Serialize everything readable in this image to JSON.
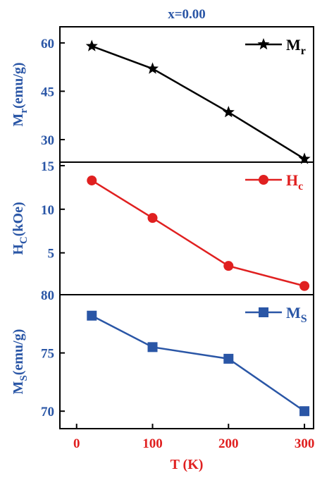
{
  "chart_data": {
    "type": "line",
    "title": "x=0.00",
    "title_color": "#2a56a6",
    "xlabel": "T (K)",
    "xlabel_color": "#e02020",
    "x_tick_color": "#e02020",
    "axis_color": "#2a56a6",
    "xlim": [
      -22,
      312
    ],
    "x_ticks": [
      "0",
      "100",
      "200",
      "300"
    ],
    "x": [
      20,
      100,
      200,
      300
    ],
    "grid": false,
    "legend_position": "top-right",
    "panels": [
      {
        "ylabel_main": "M",
        "ylabel_sub": "r",
        "ylabel_unit": "(emu/g)",
        "ylim": [
          23,
          65
        ],
        "y_ticks": [
          "60",
          "45",
          "30"
        ],
        "tick_color": "#2a56a6",
        "series": [
          {
            "name_main": "M",
            "name_sub": "r",
            "color": "#000000",
            "marker": "star",
            "values": [
              59,
              52,
              38.5,
              24
            ]
          }
        ]
      },
      {
        "ylabel_main": "H",
        "ylabel_sub": "C",
        "ylabel_unit": "(kOe)",
        "ylim": [
          0.2,
          15.4
        ],
        "y_ticks": [
          "15",
          "10",
          "5"
        ],
        "tick_color": "#2a56a6",
        "series": [
          {
            "name_main": "H",
            "name_sub": "c",
            "color": "#e02020",
            "marker": "circle",
            "values": [
              13.3,
              9.0,
              3.5,
              1.2
            ]
          }
        ]
      },
      {
        "ylabel_main": "M",
        "ylabel_sub": "S",
        "ylabel_unit": "(emu/g)",
        "ylim": [
          68.5,
          80.0
        ],
        "y_ticks": [
          "80",
          "75",
          "70"
        ],
        "tick_color": "#2a56a6",
        "series": [
          {
            "name_main": "M",
            "name_sub": "S",
            "color": "#2a56a6",
            "marker": "square",
            "values": [
              78.2,
              75.5,
              74.5,
              70.0
            ]
          }
        ]
      }
    ]
  }
}
